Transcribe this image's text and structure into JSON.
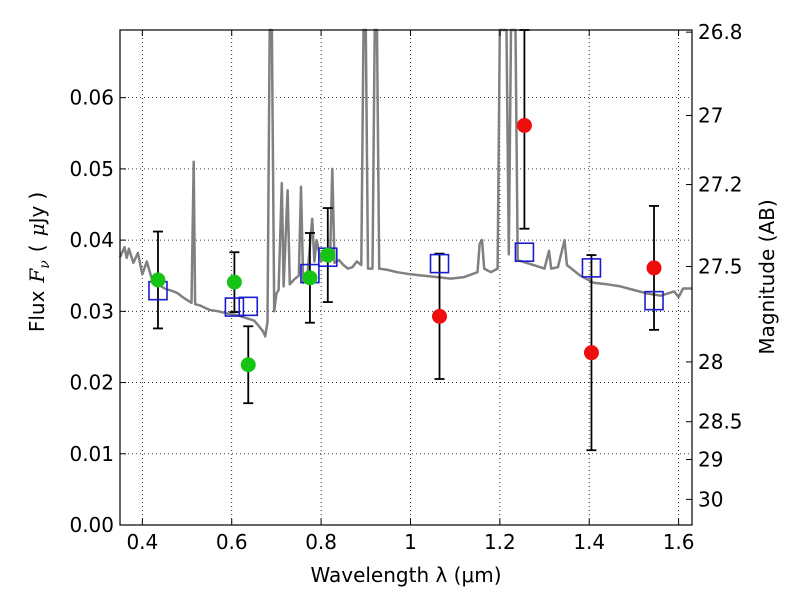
{
  "chart_data": {
    "type": "scatter",
    "xlabel": "Wavelength  λ (μm)",
    "ylabel_parts": {
      "flux": "Flux",
      "var": "F",
      "sub": "ν",
      "open": "(",
      "unit_mu": "μ",
      "unit_jy": "Jy",
      "close": ")"
    },
    "y2label": "Magnitude (AB)",
    "xlim": [
      0.35,
      1.63
    ],
    "ylim": [
      0.0,
      0.0695
    ],
    "x_ticks": [
      0.4,
      0.6,
      0.8,
      1.0,
      1.2,
      1.4,
      1.6
    ],
    "x_tick_labels": [
      "0.4",
      "0.6",
      "0.8",
      "1",
      "1.2",
      "1.4",
      "1.6"
    ],
    "y_ticks": [
      0.0,
      0.01,
      0.02,
      0.03,
      0.04,
      0.05,
      0.06
    ],
    "y_tick_labels": [
      "0.00",
      "0.01",
      "0.02",
      "0.03",
      "0.04",
      "0.05",
      "0.06"
    ],
    "mag_ticks": [
      {
        "flux": 0.0692,
        "label": "26.8"
      },
      {
        "flux": 0.0575,
        "label": "27"
      },
      {
        "flux": 0.0478,
        "label": "27.2"
      },
      {
        "flux": 0.0363,
        "label": "27.5"
      },
      {
        "flux": 0.0229,
        "label": "28"
      },
      {
        "flux": 0.0145,
        "label": "28.5"
      },
      {
        "flux": 0.0092,
        "label": "29"
      },
      {
        "flux": 0.0036,
        "label": "30"
      }
    ],
    "grid": true,
    "colors": {
      "green_points": "#16c416",
      "red_points": "#ee0e0e",
      "squares": "#1b1bcf",
      "model": "#808080",
      "errorbars": "#000000"
    },
    "series_green": [
      {
        "x": 0.435,
        "y": 0.0344,
        "err": 0.0068
      },
      {
        "x": 0.606,
        "y": 0.0341,
        "err": 0.0042
      },
      {
        "x": 0.637,
        "y": 0.0225,
        "err": 0.0054
      },
      {
        "x": 0.775,
        "y": 0.0347,
        "err": 0.0063
      },
      {
        "x": 0.815,
        "y": 0.0379,
        "err": 0.0066
      }
    ],
    "series_red": [
      {
        "x": 1.065,
        "y": 0.0293,
        "err": 0.0088
      },
      {
        "x": 1.255,
        "y": 0.0561,
        "err": 0.0145
      },
      {
        "x": 1.405,
        "y": 0.0242,
        "err": 0.0137
      },
      {
        "x": 1.545,
        "y": 0.0361,
        "err": 0.0087
      }
    ],
    "series_squares": [
      {
        "x": 0.435,
        "y": 0.0329
      },
      {
        "x": 0.606,
        "y": 0.0306
      },
      {
        "x": 0.637,
        "y": 0.0307
      },
      {
        "x": 0.775,
        "y": 0.0353
      },
      {
        "x": 0.815,
        "y": 0.0376
      },
      {
        "x": 1.065,
        "y": 0.0367
      },
      {
        "x": 1.255,
        "y": 0.0383
      },
      {
        "x": 1.405,
        "y": 0.0361
      },
      {
        "x": 1.545,
        "y": 0.0315
      }
    ],
    "model_spectrum": [
      [
        0.35,
        0.0376
      ],
      [
        0.36,
        0.039
      ],
      [
        0.365,
        0.0375
      ],
      [
        0.37,
        0.0388
      ],
      [
        0.38,
        0.0368
      ],
      [
        0.39,
        0.0382
      ],
      [
        0.4,
        0.0352
      ],
      [
        0.41,
        0.037
      ],
      [
        0.42,
        0.0348
      ],
      [
        0.43,
        0.034
      ],
      [
        0.44,
        0.0336
      ],
      [
        0.45,
        0.0332
      ],
      [
        0.46,
        0.033
      ],
      [
        0.47,
        0.0328
      ],
      [
        0.48,
        0.0325
      ],
      [
        0.49,
        0.032
      ],
      [
        0.5,
        0.0316
      ],
      [
        0.51,
        0.0312
      ],
      [
        0.515,
        0.051
      ],
      [
        0.518,
        0.031
      ],
      [
        0.53,
        0.0308
      ],
      [
        0.55,
        0.0302
      ],
      [
        0.57,
        0.03
      ],
      [
        0.59,
        0.0297
      ],
      [
        0.61,
        0.0295
      ],
      [
        0.63,
        0.0291
      ],
      [
        0.65,
        0.0287
      ],
      [
        0.66,
        0.028
      ],
      [
        0.67,
        0.0272
      ],
      [
        0.675,
        0.0265
      ],
      [
        0.68,
        0.0285
      ],
      [
        0.685,
        0.0695
      ],
      [
        0.69,
        0.0695
      ],
      [
        0.695,
        0.03
      ],
      [
        0.7,
        0.0325
      ],
      [
        0.705,
        0.033
      ],
      [
        0.712,
        0.048
      ],
      [
        0.716,
        0.0335
      ],
      [
        0.725,
        0.047
      ],
      [
        0.73,
        0.0338
      ],
      [
        0.74,
        0.0345
      ],
      [
        0.75,
        0.035
      ],
      [
        0.755,
        0.0475
      ],
      [
        0.76,
        0.034
      ],
      [
        0.77,
        0.0355
      ],
      [
        0.78,
        0.043
      ],
      [
        0.785,
        0.037
      ],
      [
        0.79,
        0.04
      ],
      [
        0.8,
        0.037
      ],
      [
        0.81,
        0.038
      ],
      [
        0.82,
        0.037
      ],
      [
        0.825,
        0.05
      ],
      [
        0.83,
        0.0368
      ],
      [
        0.84,
        0.0372
      ],
      [
        0.85,
        0.0365
      ],
      [
        0.86,
        0.036
      ],
      [
        0.87,
        0.0362
      ],
      [
        0.88,
        0.037
      ],
      [
        0.89,
        0.0365
      ],
      [
        0.895,
        0.0695
      ],
      [
        0.9,
        0.0695
      ],
      [
        0.905,
        0.036
      ],
      [
        0.915,
        0.036
      ],
      [
        0.92,
        0.0695
      ],
      [
        0.925,
        0.0695
      ],
      [
        0.93,
        0.036
      ],
      [
        0.95,
        0.0358
      ],
      [
        0.97,
        0.0355
      ],
      [
        1.0,
        0.0352
      ],
      [
        1.03,
        0.035
      ],
      [
        1.06,
        0.0348
      ],
      [
        1.09,
        0.0346
      ],
      [
        1.12,
        0.0348
      ],
      [
        1.15,
        0.0355
      ],
      [
        1.155,
        0.0395
      ],
      [
        1.16,
        0.04
      ],
      [
        1.165,
        0.036
      ],
      [
        1.18,
        0.0355
      ],
      [
        1.195,
        0.036
      ],
      [
        1.2,
        0.0695
      ],
      [
        1.215,
        0.0695
      ],
      [
        1.22,
        0.038
      ],
      [
        1.225,
        0.0695
      ],
      [
        1.235,
        0.0695
      ],
      [
        1.24,
        0.0372
      ],
      [
        1.26,
        0.0368
      ],
      [
        1.28,
        0.0364
      ],
      [
        1.3,
        0.036
      ],
      [
        1.31,
        0.0385
      ],
      [
        1.315,
        0.036
      ],
      [
        1.33,
        0.0362
      ],
      [
        1.345,
        0.04
      ],
      [
        1.35,
        0.0365
      ],
      [
        1.38,
        0.035
      ],
      [
        1.41,
        0.034
      ],
      [
        1.44,
        0.0338
      ],
      [
        1.47,
        0.0335
      ],
      [
        1.5,
        0.033
      ],
      [
        1.53,
        0.0325
      ],
      [
        1.56,
        0.0322
      ],
      [
        1.59,
        0.0328
      ],
      [
        1.6,
        0.032
      ],
      [
        1.61,
        0.0332
      ],
      [
        1.63,
        0.0332
      ]
    ]
  }
}
